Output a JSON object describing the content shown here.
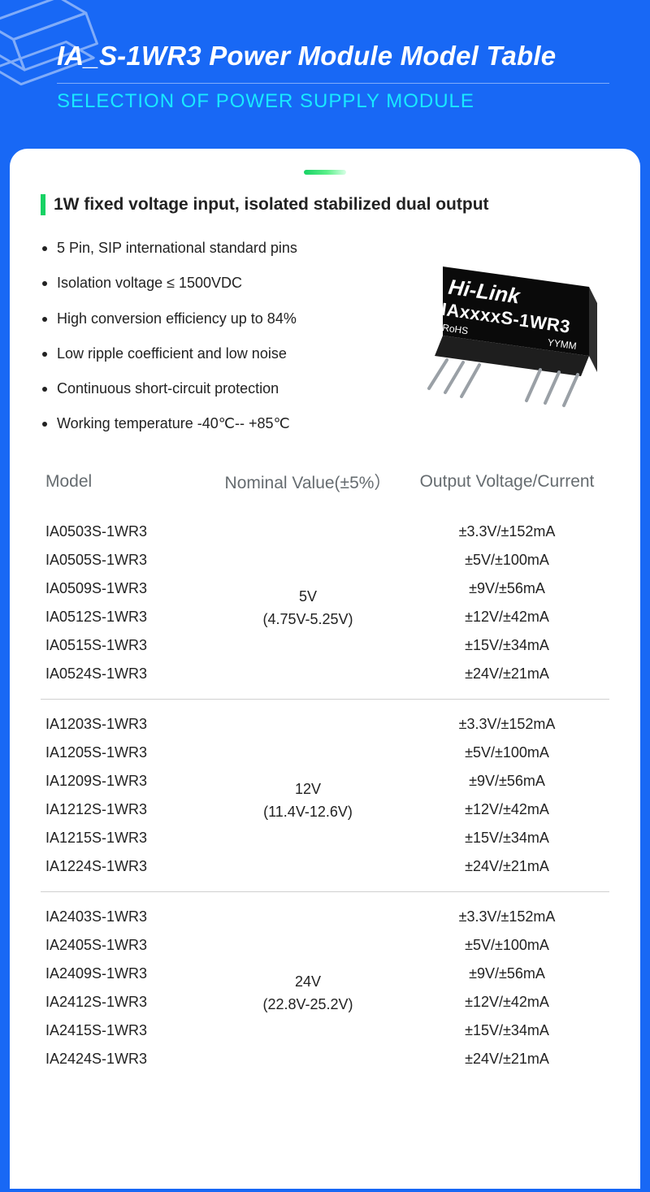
{
  "colors": {
    "page_bg": "#1868f5",
    "card_bg": "#ffffff",
    "subtitle": "#18e9ff",
    "accent_green": "#17d264",
    "th_color": "#666c70",
    "text": "#222222",
    "divider": "#d0d0d0"
  },
  "hero": {
    "title": "IA_S-1WR3 Power Module Model Table",
    "subtitle": "SELECTION OF POWER SUPPLY MODULE"
  },
  "section_title": "1W fixed voltage input, isolated stabilized dual output",
  "features": [
    "5 Pin, SIP international standard pins",
    "Isolation voltage ≤ 1500VDC",
    "High conversion efficiency up to 84%",
    "Low ripple coefficient and low noise",
    "Continuous short-circuit protection",
    "Working temperature -40℃-- +85℃"
  ],
  "module_label": {
    "brand": "Hi-Link",
    "part": "IAxxxxS-1WR3",
    "rohs": "•RoHS",
    "date": "YYMM"
  },
  "table": {
    "columns": [
      "Model",
      "Nominal Value(±5%）",
      "Output Voltage/Current"
    ],
    "groups": [
      {
        "nominal": "5V",
        "nominal_range": "(4.75V-5.25V)",
        "rows": [
          {
            "model": "IA0503S-1WR3",
            "out": "±3.3V/±152mA"
          },
          {
            "model": "IA0505S-1WR3",
            "out": "±5V/±100mA"
          },
          {
            "model": "IA0509S-1WR3",
            "out": "±9V/±56mA"
          },
          {
            "model": "IA0512S-1WR3",
            "out": "±12V/±42mA"
          },
          {
            "model": "IA0515S-1WR3",
            "out": "±15V/±34mA"
          },
          {
            "model": "IA0524S-1WR3",
            "out": "±24V/±21mA"
          }
        ]
      },
      {
        "nominal": "12V",
        "nominal_range": "(11.4V-12.6V)",
        "rows": [
          {
            "model": "IA1203S-1WR3",
            "out": "±3.3V/±152mA"
          },
          {
            "model": "IA1205S-1WR3",
            "out": "±5V/±100mA"
          },
          {
            "model": "IA1209S-1WR3",
            "out": "±9V/±56mA"
          },
          {
            "model": "IA1212S-1WR3",
            "out": "±12V/±42mA"
          },
          {
            "model": "IA1215S-1WR3",
            "out": "±15V/±34mA"
          },
          {
            "model": "IA1224S-1WR3",
            "out": "±24V/±21mA"
          }
        ]
      },
      {
        "nominal": "24V",
        "nominal_range": "(22.8V-25.2V)",
        "rows": [
          {
            "model": "IA2403S-1WR3",
            "out": "±3.3V/±152mA"
          },
          {
            "model": "IA2405S-1WR3",
            "out": "±5V/±100mA"
          },
          {
            "model": "IA2409S-1WR3",
            "out": "±9V/±56mA"
          },
          {
            "model": "IA2412S-1WR3",
            "out": "±12V/±42mA"
          },
          {
            "model": "IA2415S-1WR3",
            "out": "±15V/±34mA"
          },
          {
            "model": "IA2424S-1WR3",
            "out": "±24V/±21mA"
          }
        ]
      }
    ]
  }
}
